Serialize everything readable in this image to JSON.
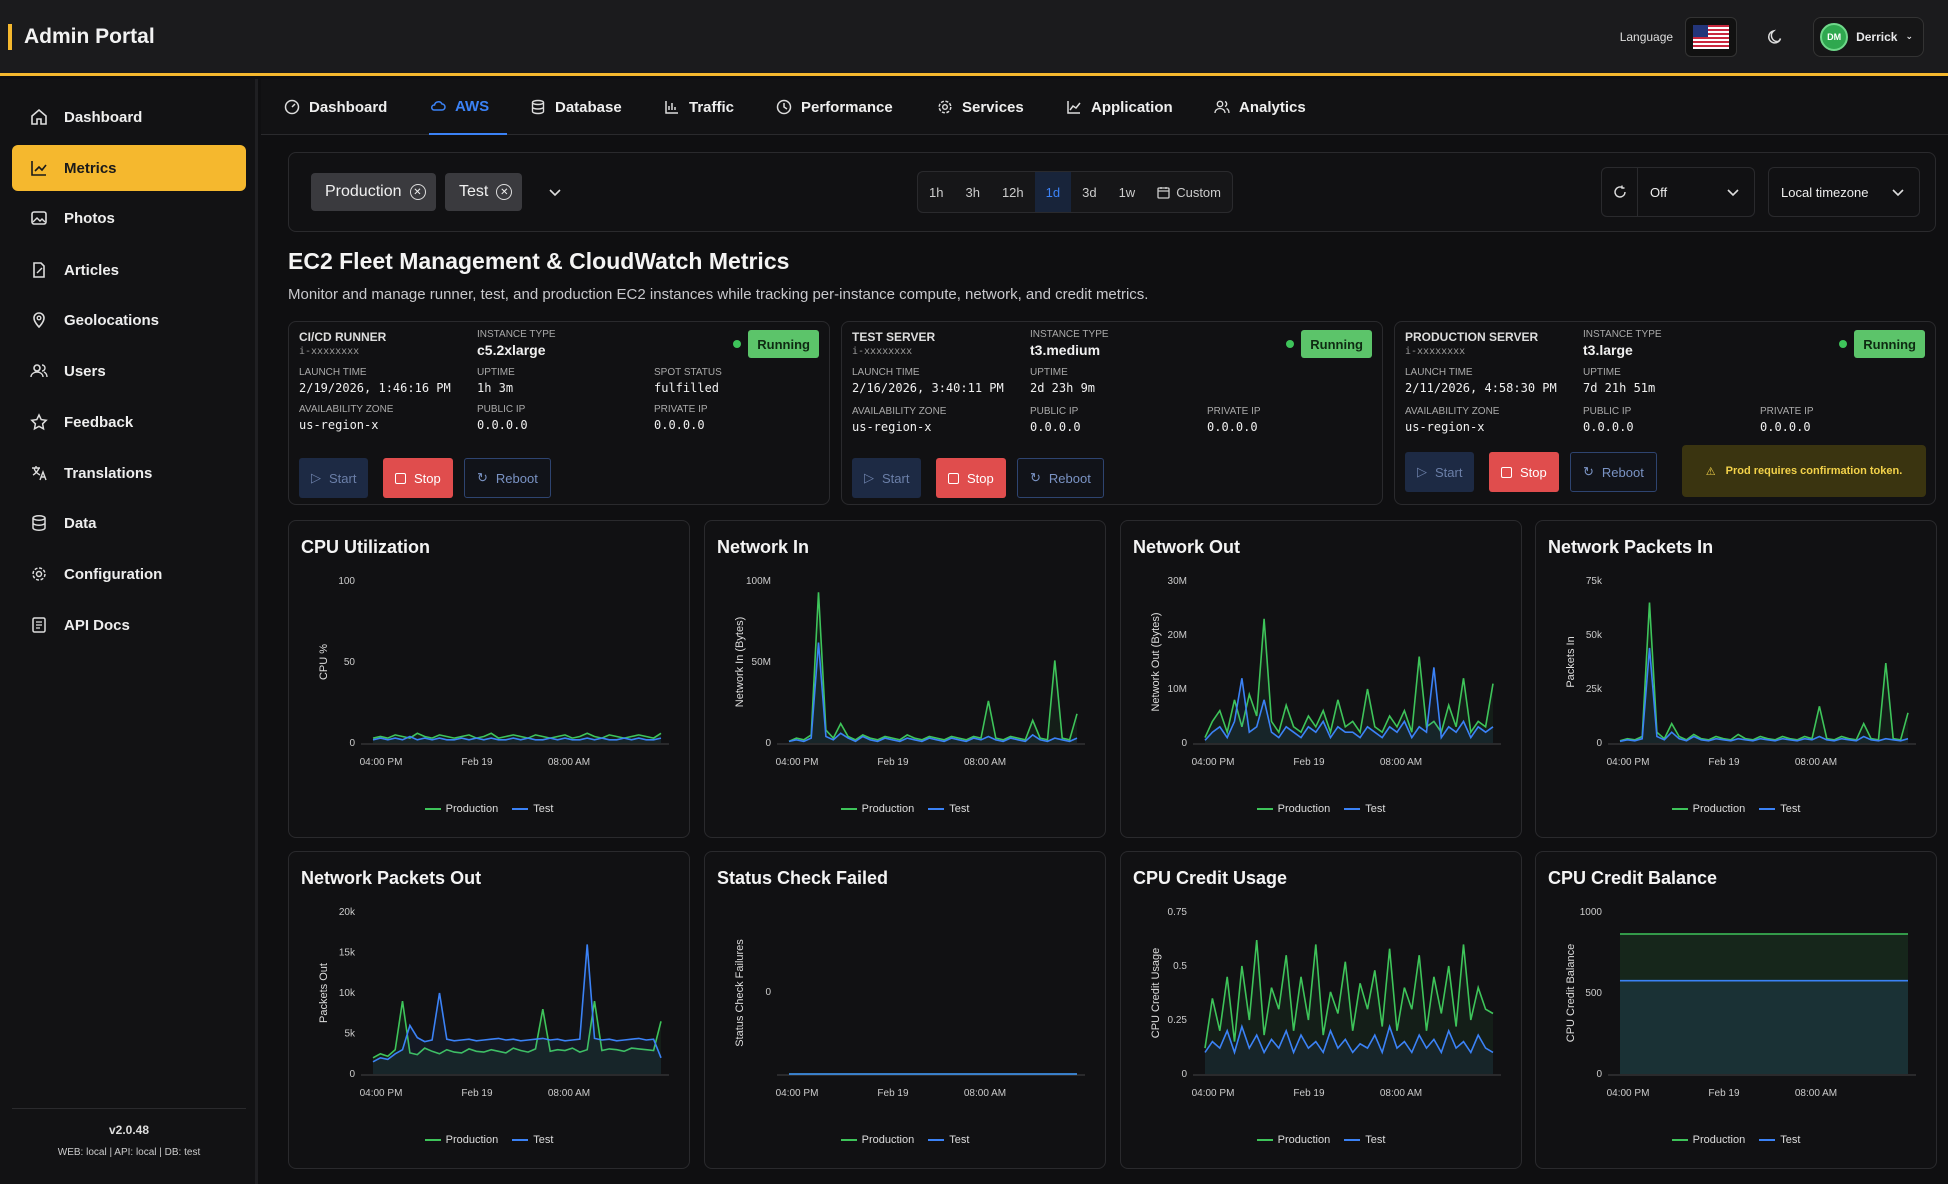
{
  "app": {
    "title": "Admin Portal",
    "language_label": "Language",
    "user_initials": "DM",
    "user_name": "Derrick"
  },
  "sidebar": {
    "items": [
      {
        "label": "Dashboard",
        "icon": "home-icon"
      },
      {
        "label": "Metrics",
        "icon": "chart-icon",
        "active": true
      },
      {
        "label": "Photos",
        "icon": "photos-icon"
      },
      {
        "label": "Articles",
        "icon": "articles-icon"
      },
      {
        "label": "Geolocations",
        "icon": "pin-icon"
      },
      {
        "label": "Users",
        "icon": "users-icon"
      },
      {
        "label": "Feedback",
        "icon": "star-icon"
      },
      {
        "label": "Translations",
        "icon": "translate-icon"
      },
      {
        "label": "Data",
        "icon": "database-icon"
      },
      {
        "label": "Configuration",
        "icon": "gear-icon"
      },
      {
        "label": "API Docs",
        "icon": "docs-icon"
      }
    ],
    "version": "v2.0.48",
    "env": "WEB: local  |  API: local  |  DB: test"
  },
  "tabs": [
    {
      "label": "Dashboard",
      "icon": "gauge-icon"
    },
    {
      "label": "AWS",
      "icon": "cloud-icon",
      "active": true
    },
    {
      "label": "Database",
      "icon": "database-icon"
    },
    {
      "label": "Traffic",
      "icon": "bar-chart-icon"
    },
    {
      "label": "Performance",
      "icon": "clock-icon"
    },
    {
      "label": "Services",
      "icon": "gear-icon"
    },
    {
      "label": "Application",
      "icon": "line-chart-icon"
    },
    {
      "label": "Analytics",
      "icon": "users-icon"
    }
  ],
  "filters": {
    "chips": [
      "Production",
      "Test"
    ],
    "ranges": [
      "1h",
      "3h",
      "12h",
      "1d",
      "3d",
      "1w"
    ],
    "active_range": "1d",
    "custom_label": "Custom",
    "refresh_value": "Off",
    "timezone": "Local timezone"
  },
  "page": {
    "title": "EC2 Fleet Management & CloudWatch Metrics",
    "subtitle": "Monitor and manage runner, test, and production EC2 instances while tracking per-instance compute, network, and credit metrics."
  },
  "instances": [
    {
      "name": "CI/CD RUNNER",
      "id": "i-xxxxxxxx",
      "type_label": "INSTANCE TYPE",
      "type": "c5.2xlarge",
      "status": "Running",
      "launch_label": "LAUNCH TIME",
      "launch": "2/19/2026, 1:46:16 PM",
      "uptime_label": "UPTIME",
      "uptime": "1h 3m",
      "extra_label": "SPOT STATUS",
      "extra": "fulfilled",
      "az_label": "AVAILABILITY ZONE",
      "az": "us-region-x",
      "pub_label": "PUBLIC IP",
      "pub": "0.0.0.0",
      "priv_label": "PRIVATE IP",
      "priv": "0.0.0.0"
    },
    {
      "name": "TEST SERVER",
      "id": "i-xxxxxxxx",
      "type_label": "INSTANCE TYPE",
      "type": "t3.medium",
      "status": "Running",
      "launch_label": "LAUNCH TIME",
      "launch": "2/16/2026, 3:40:11 PM",
      "uptime_label": "UPTIME",
      "uptime": "2d 23h 9m",
      "az_label": "AVAILABILITY ZONE",
      "az": "us-region-x",
      "pub_label": "PUBLIC IP",
      "pub": "0.0.0.0",
      "priv_label": "PRIVATE IP",
      "priv": "0.0.0.0"
    },
    {
      "name": "PRODUCTION SERVER",
      "id": "i-xxxxxxxx",
      "type_label": "INSTANCE TYPE",
      "type": "t3.large",
      "status": "Running",
      "launch_label": "LAUNCH TIME",
      "launch": "2/11/2026, 4:58:30 PM",
      "uptime_label": "UPTIME",
      "uptime": "7d 21h 51m",
      "az_label": "AVAILABILITY ZONE",
      "az": "us-region-x",
      "pub_label": "PUBLIC IP",
      "pub": "0.0.0.0",
      "priv_label": "PRIVATE IP",
      "priv": "0.0.0.0"
    }
  ],
  "actions": {
    "start": "Start",
    "stop": "Stop",
    "reboot": "Reboot"
  },
  "warning": "Prod requires confirmation token.",
  "colors": {
    "accent": "#f5b82e",
    "production": "#3ec45a",
    "test": "#3b82f6",
    "running": "#5cc46a",
    "stop": "#e04d4d"
  },
  "chart_data": [
    {
      "type": "line",
      "title": "CPU Utilization",
      "ylabel": "CPU %",
      "ylim": [
        0,
        100
      ],
      "yticks": [
        "0",
        "50",
        "100"
      ],
      "xticks": [
        "04:00 PM",
        "Feb 19",
        "08:00 AM"
      ],
      "series": [
        {
          "name": "Production",
          "values": [
            3,
            4,
            3,
            5,
            4,
            3,
            6,
            4,
            3,
            5,
            4,
            3,
            4,
            5,
            3,
            4,
            6,
            3,
            4,
            5,
            4,
            3,
            5,
            4,
            3,
            4,
            5,
            3,
            4,
            6,
            4,
            3,
            5,
            4,
            3,
            4,
            5,
            4,
            3,
            6
          ]
        },
        {
          "name": "Test",
          "values": [
            2,
            3,
            2,
            3,
            2,
            4,
            2,
            3,
            2,
            3,
            2,
            2,
            3,
            2,
            3,
            2,
            3,
            2,
            2,
            3,
            2,
            3,
            2,
            2,
            3,
            2,
            3,
            2,
            2,
            3,
            2,
            3,
            2,
            2,
            3,
            2,
            3,
            2,
            2,
            3
          ]
        }
      ]
    },
    {
      "type": "line",
      "title": "Network In",
      "ylabel": "Network In (Bytes)",
      "ylim": [
        0,
        100000000
      ],
      "yticks": [
        "0",
        "50M",
        "100M"
      ],
      "xticks": [
        "04:00 PM",
        "Feb 19",
        "08:00 AM"
      ],
      "series": [
        {
          "name": "Production",
          "values": [
            1000000,
            3000000,
            2000000,
            5000000,
            93000000,
            8000000,
            3000000,
            12000000,
            4000000,
            2000000,
            5000000,
            3000000,
            2000000,
            4000000,
            3000000,
            2000000,
            5000000,
            3000000,
            2000000,
            4000000,
            3000000,
            2000000,
            4000000,
            3000000,
            2000000,
            4000000,
            3000000,
            26000000,
            3000000,
            2000000,
            4000000,
            3000000,
            2000000,
            14000000,
            3000000,
            2000000,
            51000000,
            3000000,
            2000000,
            18000000
          ]
        },
        {
          "name": "Test",
          "values": [
            1000000,
            2000000,
            1000000,
            3000000,
            62000000,
            4000000,
            2000000,
            6000000,
            3000000,
            1000000,
            4000000,
            2000000,
            1000000,
            3000000,
            2000000,
            1000000,
            3000000,
            2000000,
            1000000,
            3000000,
            2000000,
            1000000,
            3000000,
            2000000,
            1000000,
            3000000,
            2000000,
            4000000,
            2000000,
            1000000,
            3000000,
            2000000,
            1000000,
            5000000,
            2000000,
            1000000,
            3000000,
            2000000,
            1000000,
            3000000
          ]
        }
      ]
    },
    {
      "type": "line",
      "title": "Network Out",
      "ylabel": "Network Out (Bytes)",
      "ylim": [
        0,
        30000000
      ],
      "yticks": [
        "0",
        "10M",
        "20M",
        "30M"
      ],
      "xticks": [
        "04:00 PM",
        "Feb 19",
        "08:00 AM"
      ],
      "series": [
        {
          "name": "Production",
          "values": [
            1000000,
            4000000,
            6000000,
            2000000,
            8000000,
            3000000,
            9000000,
            5000000,
            23000000,
            4000000,
            2000000,
            7000000,
            3000000,
            2000000,
            5000000,
            3000000,
            6000000,
            2000000,
            8000000,
            3000000,
            4000000,
            2000000,
            10000000,
            3000000,
            2000000,
            5000000,
            3000000,
            6000000,
            2000000,
            16000000,
            3000000,
            4000000,
            2000000,
            7000000,
            3000000,
            12000000,
            2000000,
            4000000,
            3000000,
            11000000
          ]
        },
        {
          "name": "Test",
          "values": [
            500000,
            2000000,
            3000000,
            1000000,
            4000000,
            12000000,
            2000000,
            3000000,
            8000000,
            2000000,
            1000000,
            3000000,
            2000000,
            1000000,
            3000000,
            2000000,
            4000000,
            1000000,
            3000000,
            2000000,
            2000000,
            1000000,
            3000000,
            2000000,
            1000000,
            3000000,
            2000000,
            4000000,
            1000000,
            3000000,
            2000000,
            14000000,
            1000000,
            3000000,
            2000000,
            4000000,
            1000000,
            3000000,
            2000000,
            3000000
          ]
        }
      ]
    },
    {
      "type": "line",
      "title": "Network Packets In",
      "ylabel": "Packets In",
      "ylim": [
        0,
        75000
      ],
      "yticks": [
        "0",
        "25k",
        "50k",
        "75k"
      ],
      "xticks": [
        "04:00 PM",
        "Feb 19",
        "08:00 AM"
      ],
      "series": [
        {
          "name": "Production",
          "values": [
            1000,
            2000,
            1500,
            3000,
            65000,
            5000,
            2000,
            9000,
            3000,
            1500,
            4000,
            2000,
            1500,
            3000,
            2000,
            1500,
            4000,
            2000,
            1500,
            3000,
            2000,
            1500,
            3000,
            2000,
            1500,
            3000,
            2000,
            17000,
            2000,
            1500,
            3000,
            2000,
            1500,
            9000,
            2000,
            1500,
            37000,
            2000,
            1500,
            14000
          ]
        },
        {
          "name": "Test",
          "values": [
            800,
            1500,
            1000,
            2000,
            44000,
            3000,
            1500,
            5000,
            2000,
            1000,
            3000,
            1500,
            1000,
            2000,
            1500,
            1000,
            2000,
            1500,
            1000,
            2000,
            1500,
            1000,
            2000,
            1500,
            1000,
            2000,
            1500,
            3000,
            1500,
            1000,
            2000,
            1500,
            1000,
            3000,
            1500,
            1000,
            2000,
            1500,
            1000,
            2000
          ]
        }
      ]
    },
    {
      "type": "line",
      "title": "Network Packets Out",
      "ylabel": "Packets Out",
      "ylim": [
        0,
        20000
      ],
      "yticks": [
        "0",
        "5k",
        "10k",
        "15k",
        "20k"
      ],
      "xticks": [
        "04:00 PM",
        "Feb 19",
        "08:00 AM"
      ],
      "series": [
        {
          "name": "Production",
          "values": [
            2000,
            2500,
            2200,
            3000,
            9000,
            2600,
            2400,
            3200,
            2800,
            2500,
            3000,
            2700,
            2600,
            3100,
            2800,
            2700,
            3000,
            2800,
            2600,
            3200,
            2900,
            2700,
            3100,
            8000,
            2800,
            3000,
            2900,
            3200,
            2700,
            3000,
            9000,
            2900,
            3100,
            3000,
            2800,
            3200,
            3100,
            3000,
            2900,
            6500
          ]
        },
        {
          "name": "Test",
          "values": [
            1500,
            2000,
            1800,
            2500,
            3000,
            6000,
            4500,
            4000,
            4200,
            10000,
            4300,
            4100,
            4200,
            4300,
            4100,
            4200,
            4300,
            4400,
            4200,
            4300,
            4100,
            4200,
            4300,
            4400,
            4200,
            4300,
            4100,
            4200,
            4300,
            16000,
            4400,
            4200,
            4300,
            4100,
            4200,
            4300,
            4400,
            4200,
            4300,
            2000
          ]
        }
      ]
    },
    {
      "type": "line",
      "title": "Status Check Failed",
      "ylabel": "Status Check Failures",
      "ylim": [
        0,
        1
      ],
      "yticks": [
        "0"
      ],
      "xticks": [
        "04:00 PM",
        "Feb 19",
        "08:00 AM"
      ],
      "series": [
        {
          "name": "Production",
          "values": [
            0,
            0,
            0,
            0,
            0,
            0,
            0,
            0,
            0,
            0,
            0,
            0,
            0,
            0,
            0,
            0,
            0,
            0,
            0,
            0
          ]
        },
        {
          "name": "Test",
          "values": [
            0,
            0,
            0,
            0,
            0,
            0,
            0,
            0,
            0,
            0,
            0,
            0,
            0,
            0,
            0,
            0,
            0,
            0,
            0,
            0
          ]
        }
      ]
    },
    {
      "type": "line",
      "title": "CPU Credit Usage",
      "ylabel": "CPU Credit Usage",
      "ylim": [
        0,
        0.75
      ],
      "yticks": [
        "0",
        "0.25",
        "0.5",
        "0.75"
      ],
      "xticks": [
        "04:00 PM",
        "Feb 19",
        "08:00 AM"
      ],
      "series": [
        {
          "name": "Production",
          "values": [
            0.12,
            0.35,
            0.2,
            0.45,
            0.15,
            0.5,
            0.25,
            0.62,
            0.18,
            0.4,
            0.3,
            0.55,
            0.2,
            0.45,
            0.25,
            0.6,
            0.18,
            0.38,
            0.28,
            0.52,
            0.2,
            0.42,
            0.3,
            0.48,
            0.22,
            0.58,
            0.2,
            0.4,
            0.3,
            0.55,
            0.2,
            0.45,
            0.28,
            0.5,
            0.22,
            0.6,
            0.25,
            0.4,
            0.3,
            0.28
          ]
        },
        {
          "name": "Test",
          "values": [
            0.1,
            0.15,
            0.12,
            0.2,
            0.1,
            0.22,
            0.12,
            0.18,
            0.1,
            0.16,
            0.12,
            0.2,
            0.1,
            0.18,
            0.12,
            0.15,
            0.1,
            0.2,
            0.12,
            0.16,
            0.1,
            0.14,
            0.12,
            0.18,
            0.1,
            0.22,
            0.12,
            0.15,
            0.1,
            0.18,
            0.12,
            0.16,
            0.1,
            0.2,
            0.12,
            0.15,
            0.1,
            0.18,
            0.12,
            0.1
          ]
        }
      ]
    },
    {
      "type": "area",
      "title": "CPU Credit Balance",
      "ylabel": "CPU Credit Balance",
      "ylim": [
        0,
        1000
      ],
      "yticks": [
        "0",
        "500",
        "1000"
      ],
      "xticks": [
        "04:00 PM",
        "Feb 19",
        "08:00 AM"
      ],
      "series": [
        {
          "name": "Production",
          "values": [
            864,
            864,
            864,
            864,
            864,
            864,
            864,
            864,
            864,
            864
          ]
        },
        {
          "name": "Test",
          "values": [
            576,
            576,
            576,
            576,
            576,
            576,
            576,
            576,
            576,
            576
          ]
        }
      ]
    }
  ]
}
